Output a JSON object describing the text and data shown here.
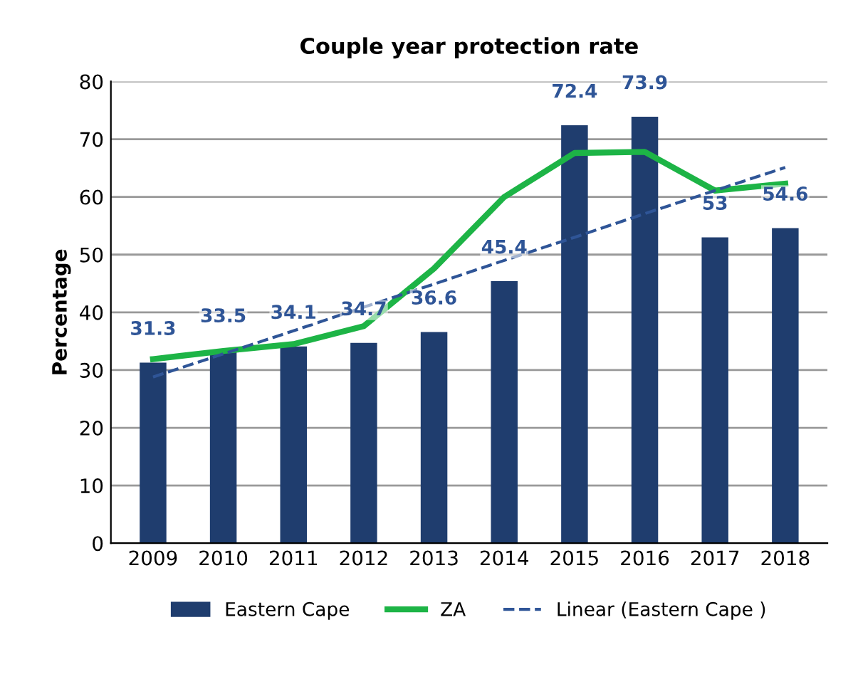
{
  "chart_data": {
    "type": "bar",
    "title": "Couple year protection rate",
    "ylabel": "Percentage",
    "categories": [
      "2009",
      "2010",
      "2011",
      "2012",
      "2013",
      "2014",
      "2015",
      "2016",
      "2017",
      "2018"
    ],
    "series": [
      {
        "name": "Eastern Cape",
        "color": "#1f3d6e",
        "values": [
          31.3,
          33.5,
          34.1,
          34.7,
          36.6,
          45.4,
          72.4,
          73.9,
          53,
          54.6
        ],
        "data_labels": true
      },
      {
        "name": "ZA",
        "type": "line",
        "color": "#1db446",
        "values": [
          31.9,
          33.3,
          34.5,
          37.6,
          47.6,
          60,
          67.6,
          67.8,
          61.1,
          62.3
        ],
        "marker": "none",
        "line_style": "solid"
      },
      {
        "name": "Linear (Eastern Cape )",
        "type": "line",
        "color": "#2f5597",
        "values": [
          28.8,
          32.8,
          36.8,
          40.9,
          44.9,
          49.0,
          53.0,
          57.1,
          61.1,
          65.1
        ],
        "marker": "none",
        "line_style": "dashed"
      }
    ],
    "ylim": [
      0,
      80
    ],
    "yticks": [
      0,
      10,
      20,
      30,
      40,
      50,
      60,
      70,
      80
    ],
    "grid": "y",
    "legend": "bottom"
  }
}
